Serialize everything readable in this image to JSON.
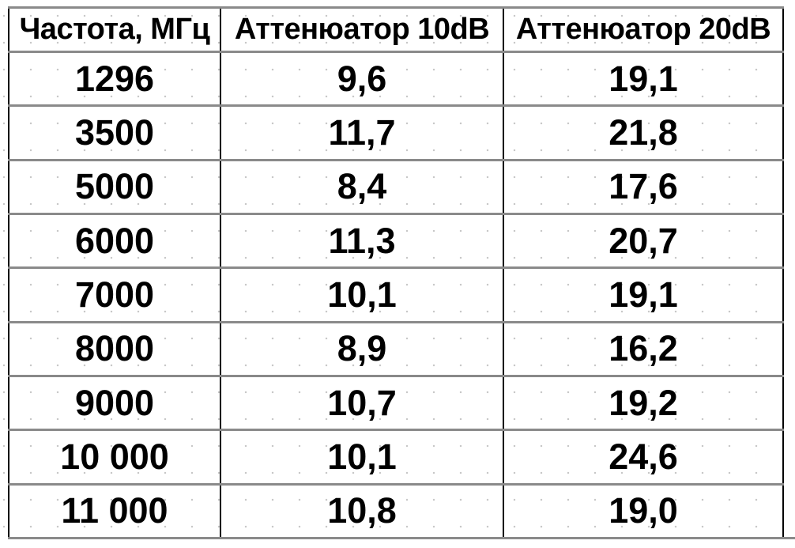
{
  "chart_data": {
    "type": "table",
    "title": "",
    "columns": [
      "Частота, МГц",
      "Аттенюатор 10dB",
      "Аттенюатор 20dB"
    ],
    "rows": [
      [
        "1296",
        "9,6",
        "19,1"
      ],
      [
        "3500",
        "11,7",
        "21,8"
      ],
      [
        "5000",
        "8,4",
        "17,6"
      ],
      [
        "6000",
        "11,3",
        "20,7"
      ],
      [
        "7000",
        "10,1",
        "19,1"
      ],
      [
        "8000",
        "8,9",
        "16,2"
      ],
      [
        "9000",
        "10,7",
        "19,2"
      ],
      [
        "10 000",
        "10,1",
        "24,6"
      ],
      [
        "11 000",
        "10,8",
        "19,0"
      ]
    ],
    "layout_hints": {
      "header_row": true,
      "decimal_separator": ",",
      "text_align": "center",
      "grid": "horizontal rules gray, vertical rules black"
    }
  },
  "colors": {
    "background": "#ffffff",
    "text": "#000000",
    "horizontal_rule": "#8a8a8a",
    "vertical_rule": "#000000",
    "dot_grid": "#c6c6c6"
  }
}
